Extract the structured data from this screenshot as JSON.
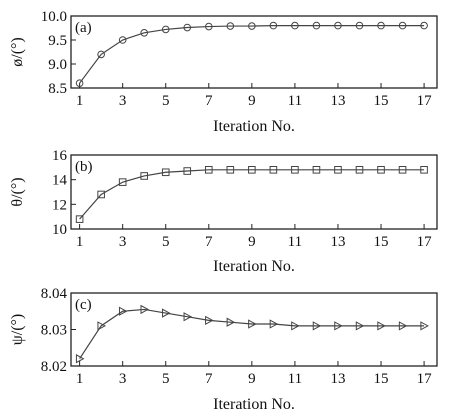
{
  "chart_data": [
    {
      "type": "line",
      "panel_label": "(a)",
      "xlabel": "Iteration No.",
      "ylabel": "ø/(°)",
      "marker": "circle",
      "x": [
        1,
        2,
        3,
        4,
        5,
        6,
        7,
        8,
        9,
        10,
        11,
        12,
        13,
        14,
        15,
        16,
        17
      ],
      "values": [
        8.6,
        9.2,
        9.5,
        9.65,
        9.72,
        9.76,
        9.78,
        9.79,
        9.79,
        9.8,
        9.8,
        9.8,
        9.8,
        9.8,
        9.8,
        9.8,
        9.8
      ],
      "xlim": [
        0.6,
        17.6
      ],
      "ylim": [
        8.5,
        10.0
      ],
      "xticks": [
        1,
        3,
        5,
        7,
        9,
        11,
        13,
        15,
        17
      ],
      "yticks": [
        8.5,
        9.0,
        9.5,
        10.0
      ],
      "ytick_labels": [
        "8.5",
        "9.0",
        "9.5",
        "10.0"
      ]
    },
    {
      "type": "line",
      "panel_label": "(b)",
      "xlabel": "Iteration No.",
      "ylabel": "θ/(°)",
      "marker": "square",
      "x": [
        1,
        2,
        3,
        4,
        5,
        6,
        7,
        8,
        9,
        10,
        11,
        12,
        13,
        14,
        15,
        16,
        17
      ],
      "values": [
        10.8,
        12.8,
        13.8,
        14.3,
        14.6,
        14.7,
        14.8,
        14.8,
        14.8,
        14.8,
        14.8,
        14.8,
        14.8,
        14.8,
        14.8,
        14.8,
        14.8
      ],
      "xlim": [
        0.6,
        17.6
      ],
      "ylim": [
        10,
        16
      ],
      "xticks": [
        1,
        3,
        5,
        7,
        9,
        11,
        13,
        15,
        17
      ],
      "yticks": [
        10,
        12,
        14,
        16
      ],
      "ytick_labels": [
        "10",
        "12",
        "14",
        "16"
      ]
    },
    {
      "type": "line",
      "panel_label": "(c)",
      "xlabel": "Iteration No.",
      "ylabel": "ψ/(°)",
      "marker": "triangle-right",
      "x": [
        1,
        2,
        3,
        4,
        5,
        6,
        7,
        8,
        9,
        10,
        11,
        12,
        13,
        14,
        15,
        16,
        17
      ],
      "values": [
        8.022,
        8.031,
        8.035,
        8.0355,
        8.0345,
        8.0335,
        8.0325,
        8.032,
        8.0315,
        8.0315,
        8.031,
        8.031,
        8.031,
        8.031,
        8.031,
        8.031,
        8.031
      ],
      "xlim": [
        0.6,
        17.6
      ],
      "ylim": [
        8.02,
        8.04
      ],
      "xticks": [
        1,
        3,
        5,
        7,
        9,
        11,
        13,
        15,
        17
      ],
      "yticks": [
        8.02,
        8.03,
        8.04
      ],
      "ytick_labels": [
        "8.02",
        "8.03",
        "8.04"
      ]
    }
  ]
}
